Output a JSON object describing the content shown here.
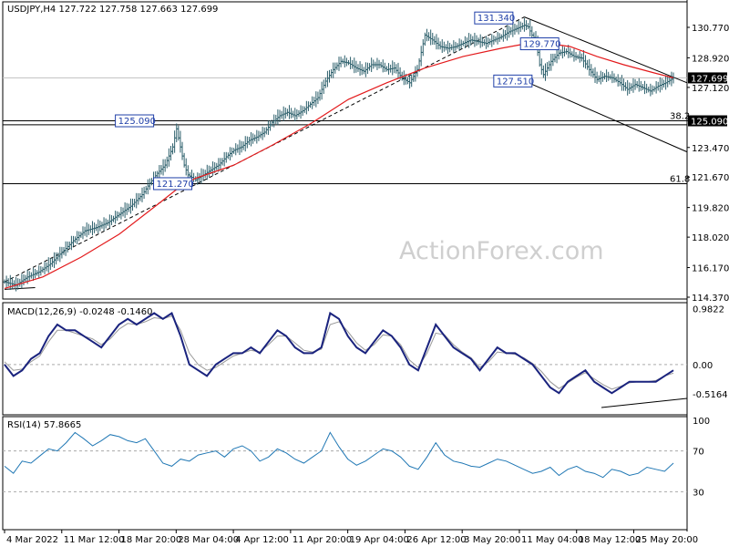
{
  "chart_data": [
    {
      "type": "line",
      "panel": "price",
      "header": {
        "symbol": "USDJPY,H4",
        "open": "127.722",
        "high": "127.758",
        "low": "127.663",
        "close": "127.699"
      },
      "ylim": [
        114.37,
        131.9
      ],
      "y_ticks": [
        "130.770",
        "128.920",
        "127.120",
        "125.090",
        "123.470",
        "121.670",
        "119.820",
        "118.020",
        "116.170",
        "114.370"
      ],
      "last_price": "127.699",
      "x_ticks": [
        "4 Mar 2022",
        "11 Mar 12:00",
        "18 Mar 20:00",
        "28 Mar 04:00",
        "4 Apr 12:00",
        "11 Apr 20:00",
        "19 Apr 04:00",
        "26 Apr 12:00",
        "3 May 20:00",
        "11 May 04:00",
        "18 May 12:00",
        "25 May 20:00"
      ],
      "series": [
        {
          "values": [
            [
              0,
              115.3
            ],
            [
              3,
              115.1
            ],
            [
              6,
              115.6
            ],
            [
              9,
              115.9
            ],
            [
              12,
              116.4
            ],
            [
              15,
              117.1
            ],
            [
              18,
              117.8
            ],
            [
              21,
              118.4
            ],
            [
              24,
              118.6
            ],
            [
              27,
              118.9
            ],
            [
              30,
              119.4
            ],
            [
              33,
              119.9
            ],
            [
              36,
              120.6
            ],
            [
              38,
              121.3
            ],
            [
              40,
              121.9
            ],
            [
              42,
              122.4
            ],
            [
              44,
              123.5
            ],
            [
              45,
              124.6
            ],
            [
              46,
              123.5
            ],
            [
              47,
              122.4
            ],
            [
              48,
              121.8
            ],
            [
              50,
              121.5
            ],
            [
              52,
              121.8
            ],
            [
              54,
              122.1
            ],
            [
              56,
              122.4
            ],
            [
              58,
              122.9
            ],
            [
              60,
              123.3
            ],
            [
              62,
              123.5
            ],
            [
              64,
              123.9
            ],
            [
              66,
              124.1
            ],
            [
              68,
              124.4
            ],
            [
              70,
              125.0
            ],
            [
              72,
              125.4
            ],
            [
              74,
              125.6
            ],
            [
              76,
              125.4
            ],
            [
              78,
              125.7
            ],
            [
              80,
              126.1
            ],
            [
              82,
              126.5
            ],
            [
              84,
              127.5
            ],
            [
              86,
              128.2
            ],
            [
              88,
              128.7
            ],
            [
              90,
              128.6
            ],
            [
              92,
              128.3
            ],
            [
              94,
              128.1
            ],
            [
              96,
              128.5
            ],
            [
              98,
              128.5
            ],
            [
              100,
              128.2
            ],
            [
              102,
              128.3
            ],
            [
              104,
              127.7
            ],
            [
              106,
              127.4
            ],
            [
              108,
              128.2
            ],
            [
              110,
              130.3
            ],
            [
              112,
              130.0
            ],
            [
              114,
              129.6
            ],
            [
              116,
              129.5
            ],
            [
              118,
              129.6
            ],
            [
              120,
              129.8
            ],
            [
              122,
              130.0
            ],
            [
              124,
              129.9
            ],
            [
              126,
              129.8
            ],
            [
              128,
              130.0
            ],
            [
              130,
              130.2
            ],
            [
              132,
              130.5
            ],
            [
              134,
              130.7
            ],
            [
              136,
              130.9
            ],
            [
              137,
              130.8
            ],
            [
              138,
              130.3
            ],
            [
              139,
              130.0
            ],
            [
              140,
              128.5
            ],
            [
              141,
              127.9
            ],
            [
              143,
              128.7
            ],
            [
              145,
              129.2
            ],
            [
              147,
              129.3
            ],
            [
              149,
              129.0
            ],
            [
              151,
              128.9
            ],
            [
              153,
              128.2
            ],
            [
              155,
              127.6
            ],
            [
              157,
              127.8
            ],
            [
              159,
              127.7
            ],
            [
              161,
              127.4
            ],
            [
              163,
              127.0
            ],
            [
              165,
              127.3
            ],
            [
              167,
              127.1
            ],
            [
              169,
              126.9
            ],
            [
              171,
              127.2
            ],
            [
              173,
              127.4
            ],
            [
              175,
              127.7
            ]
          ],
          "x_range": [
            0,
            175
          ]
        },
        {
          "name": "MA",
          "values": [
            [
              0,
              114.9
            ],
            [
              10,
              115.6
            ],
            [
              20,
              116.8
            ],
            [
              30,
              118.2
            ],
            [
              40,
              120.0
            ],
            [
              46,
              121.1
            ],
            [
              50,
              121.6
            ],
            [
              60,
              122.4
            ],
            [
              70,
              123.6
            ],
            [
              80,
              124.9
            ],
            [
              90,
              126.4
            ],
            [
              100,
              127.4
            ],
            [
              110,
              128.3
            ],
            [
              120,
              129.0
            ],
            [
              130,
              129.5
            ],
            [
              137,
              129.8
            ],
            [
              142,
              129.8
            ],
            [
              148,
              129.6
            ],
            [
              155,
              129.0
            ],
            [
              162,
              128.5
            ],
            [
              170,
              128.0
            ],
            [
              175,
              127.7
            ]
          ]
        }
      ],
      "annotations": [
        {
          "text": "131.340",
          "x": 128,
          "y": 131.34
        },
        {
          "text": "129.770",
          "x": 140,
          "y": 129.77
        },
        {
          "text": "127.510",
          "x": 133,
          "y": 127.51
        },
        {
          "text": "125.090",
          "x": 34,
          "y": 125.09
        },
        {
          "text": "121.270",
          "x": 44,
          "y": 121.27
        }
      ],
      "hlines": [
        {
          "y": 127.7,
          "color": "#c0c0c0"
        },
        {
          "y": 125.09,
          "label": "38.2"
        },
        {
          "y": 124.85
        },
        {
          "y": 121.27,
          "label": "61.8"
        }
      ],
      "trendlines": [
        {
          "from": [
            0,
            115.3
          ],
          "to": [
            136,
            131.4
          ],
          "style": "dashed"
        },
        {
          "from": [
            136,
            131.4
          ],
          "to": [
            184,
            127.4
          ]
        },
        {
          "from": [
            136,
            127.51
          ],
          "to": [
            184,
            123.2
          ]
        },
        {
          "from": [
            0,
            114.85
          ],
          "to": [
            8,
            114.95
          ]
        }
      ]
    },
    {
      "type": "line",
      "panel": "macd",
      "title": "MACD(12,26,9) -0.0248 -0.1460",
      "ylim": [
        -0.72,
        1.02
      ],
      "y_ticks": [
        "0.9822",
        "0.00",
        "-0.5164"
      ],
      "series": [
        {
          "name": "MACD",
          "values": [
            0.0,
            -0.2,
            -0.1,
            0.1,
            0.2,
            0.5,
            0.7,
            0.6,
            0.6,
            0.5,
            0.4,
            0.3,
            0.5,
            0.7,
            0.8,
            0.7,
            0.8,
            0.9,
            0.8,
            0.9,
            0.5,
            0.0,
            -0.1,
            -0.2,
            0.0,
            0.1,
            0.2,
            0.2,
            0.3,
            0.2,
            0.4,
            0.6,
            0.5,
            0.3,
            0.2,
            0.2,
            0.3,
            0.9,
            0.8,
            0.5,
            0.3,
            0.2,
            0.4,
            0.6,
            0.5,
            0.3,
            0.0,
            -0.1,
            0.3,
            0.7,
            0.5,
            0.3,
            0.2,
            0.1,
            -0.1,
            0.1,
            0.3,
            0.2,
            0.2,
            0.1,
            0.0,
            -0.2,
            -0.4,
            -0.5,
            -0.3,
            -0.2,
            -0.1,
            -0.3,
            -0.4,
            -0.5,
            -0.4,
            -0.3,
            -0.3,
            -0.3,
            -0.3,
            -0.2,
            -0.1
          ]
        },
        {
          "name": "Signal",
          "values": [
            0.05,
            -0.1,
            -0.08,
            0.05,
            0.15,
            0.4,
            0.6,
            0.6,
            0.55,
            0.5,
            0.45,
            0.35,
            0.45,
            0.62,
            0.72,
            0.7,
            0.75,
            0.82,
            0.8,
            0.85,
            0.6,
            0.2,
            0.0,
            -0.1,
            -0.05,
            0.05,
            0.15,
            0.2,
            0.25,
            0.22,
            0.35,
            0.5,
            0.5,
            0.38,
            0.25,
            0.22,
            0.27,
            0.7,
            0.75,
            0.58,
            0.38,
            0.25,
            0.35,
            0.52,
            0.5,
            0.35,
            0.08,
            -0.05,
            0.2,
            0.55,
            0.52,
            0.35,
            0.22,
            0.12,
            -0.05,
            0.05,
            0.22,
            0.2,
            0.18,
            0.12,
            0.02,
            -0.12,
            -0.3,
            -0.42,
            -0.32,
            -0.22,
            -0.14,
            -0.25,
            -0.35,
            -0.43,
            -0.38,
            -0.32,
            -0.3,
            -0.3,
            -0.28,
            -0.2,
            -0.15
          ]
        }
      ]
    },
    {
      "type": "line",
      "panel": "rsi",
      "title": "RSI(14) 57.8665",
      "ylim": [
        0,
        100
      ],
      "y_ticks": [
        "100",
        "70",
        "30"
      ],
      "series": [
        {
          "name": "RSI",
          "values": [
            55,
            48,
            60,
            58,
            65,
            72,
            70,
            78,
            88,
            82,
            75,
            80,
            86,
            84,
            80,
            78,
            82,
            70,
            58,
            55,
            62,
            60,
            66,
            68,
            70,
            64,
            72,
            75,
            70,
            60,
            64,
            72,
            68,
            62,
            58,
            64,
            70,
            88,
            74,
            62,
            56,
            60,
            66,
            72,
            70,
            64,
            55,
            52,
            64,
            78,
            66,
            60,
            58,
            55,
            54,
            58,
            62,
            60,
            56,
            52,
            48,
            50,
            54,
            46,
            52,
            55,
            50,
            48,
            44,
            52,
            50,
            46,
            48,
            54,
            52,
            50,
            58
          ]
        }
      ]
    }
  ],
  "watermark": "ActionForex.com"
}
